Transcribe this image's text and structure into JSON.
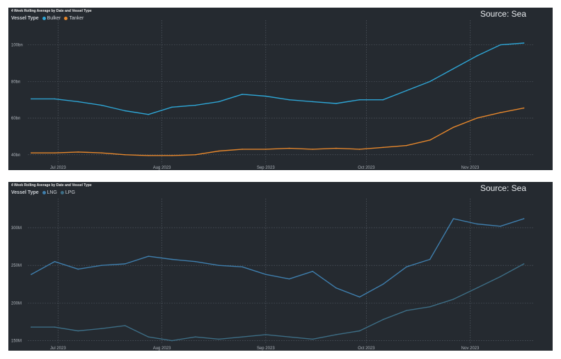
{
  "charts": [
    {
      "title": "4 Week Rolling Average by Date and Vessel Type",
      "source": "Source: Sea",
      "legend_title": "Vessel Type",
      "legend": [
        {
          "name": "Bulker",
          "color": "#2ea6d6"
        },
        {
          "name": "Tanker",
          "color": "#e8882c"
        }
      ]
    },
    {
      "title": "4 Week Rolling Average by Date and Vessel Type",
      "source": "Source: Sea",
      "legend_title": "Vessel Type",
      "legend": [
        {
          "name": "LNG",
          "color": "#3f7fae"
        },
        {
          "name": "LPG",
          "color": "#3d6e86"
        }
      ]
    }
  ],
  "chart_data": [
    {
      "type": "line",
      "title": "4 Week Rolling Average by Date and Vessel Type",
      "x_ticks": [
        "Jul 2023",
        "Aug 2023",
        "Sep 2023",
        "Oct 2023",
        "Nov 2023"
      ],
      "x": [
        "2023-06-23",
        "2023-06-30",
        "2023-07-07",
        "2023-07-14",
        "2023-07-21",
        "2023-07-28",
        "2023-08-04",
        "2023-08-11",
        "2023-08-18",
        "2023-08-25",
        "2023-09-01",
        "2023-09-08",
        "2023-09-15",
        "2023-09-22",
        "2023-09-29",
        "2023-10-06",
        "2023-10-13",
        "2023-10-20",
        "2023-10-27",
        "2023-11-03",
        "2023-11-10",
        "2023-11-17"
      ],
      "xlim": [
        "2023-06-22",
        "2023-11-20"
      ],
      "y_ticks": [
        "40bn",
        "60bn",
        "80bn",
        "100bn"
      ],
      "y_tick_values": [
        40,
        60,
        80,
        100
      ],
      "ylim": [
        35,
        112
      ],
      "grid": true,
      "legend_position": "top-left",
      "series": [
        {
          "name": "Bulker",
          "color": "#2ea6d6",
          "values": [
            70.5,
            70.5,
            69,
            67,
            64,
            62,
            66,
            67,
            69,
            73,
            72,
            70,
            69,
            68,
            70,
            70,
            75,
            80,
            87,
            94,
            100,
            101
          ]
        },
        {
          "name": "Tanker",
          "color": "#e8882c",
          "values": [
            41,
            41,
            41.5,
            41,
            40,
            39.5,
            39.5,
            40,
            42,
            43,
            43,
            43.5,
            43,
            43.5,
            43,
            44,
            45,
            48,
            55,
            60,
            63,
            65.5
          ]
        }
      ]
    },
    {
      "type": "line",
      "title": "4 Week Rolling Average by Date and Vessel Type",
      "x_ticks": [
        "Jul 2023",
        "Aug 2023",
        "Sep 2023",
        "Oct 2023",
        "Nov 2023"
      ],
      "x": [
        "2023-06-23",
        "2023-06-30",
        "2023-07-07",
        "2023-07-14",
        "2023-07-21",
        "2023-07-28",
        "2023-08-04",
        "2023-08-11",
        "2023-08-18",
        "2023-08-25",
        "2023-09-01",
        "2023-09-08",
        "2023-09-15",
        "2023-09-22",
        "2023-09-29",
        "2023-10-06",
        "2023-10-13",
        "2023-10-20",
        "2023-10-27",
        "2023-11-03",
        "2023-11-10",
        "2023-11-17"
      ],
      "xlim": [
        "2023-06-22",
        "2023-11-20"
      ],
      "y_ticks": [
        "150M",
        "200M",
        "250M",
        "300M"
      ],
      "y_tick_values": [
        150,
        200,
        250,
        300
      ],
      "ylim": [
        145,
        335
      ],
      "grid": true,
      "legend_position": "top-left",
      "series": [
        {
          "name": "LNG",
          "color": "#3f7fae",
          "values": [
            238,
            255,
            245,
            250,
            252,
            262,
            258,
            255,
            250,
            248,
            238,
            232,
            242,
            220,
            208,
            225,
            248,
            258,
            312,
            305,
            302,
            312
          ]
        },
        {
          "name": "LPG",
          "color": "#3d6e86",
          "values": [
            168,
            168,
            163,
            166,
            170,
            155,
            150,
            155,
            152,
            155,
            158,
            155,
            152,
            158,
            163,
            178,
            190,
            195,
            205,
            220,
            235,
            252
          ]
        }
      ]
    }
  ]
}
